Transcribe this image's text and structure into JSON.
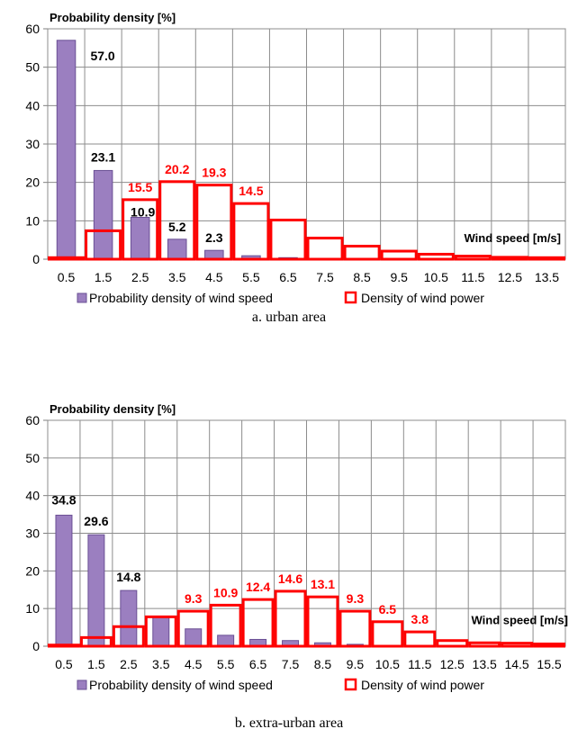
{
  "charts": [
    {
      "caption": "a. urban area",
      "chart_data": {
        "type": "bar",
        "title": "Probability density [%]",
        "xlabel": "Wind speed [m/s]",
        "ylabel": "Probability density [%]",
        "ylim": [
          0,
          60
        ],
        "yticks": [
          0,
          10,
          20,
          30,
          40,
          50,
          60
        ],
        "grid": true,
        "legend_placement": "bottom",
        "categories": [
          "0.5",
          "1.5",
          "2.5",
          "3.5",
          "4.5",
          "5.5",
          "6.5",
          "7.5",
          "8.5",
          "9.5",
          "10.5",
          "11.5",
          "12.5",
          "13.5"
        ],
        "series": [
          {
            "name": "Probability density of wind speed",
            "style": "filled-bar",
            "color": "#9b7fc0",
            "values": [
              57.0,
              23.1,
              10.9,
              5.2,
              2.3,
              0.9,
              0.4,
              0.2,
              0.1,
              0.05,
              0.02,
              0.0,
              0.0,
              0.0
            ],
            "data_labels": [
              "57.0",
              "23.1",
              "10.9",
              "5.2",
              "2.3",
              null,
              null,
              null,
              null,
              null,
              null,
              null,
              null,
              null
            ]
          },
          {
            "name": "Density of wind power",
            "style": "outline-bar",
            "color": "#ff0000",
            "values": [
              0.4,
              7.4,
              15.5,
              20.2,
              19.3,
              14.5,
              10.2,
              5.5,
              3.4,
              2.1,
              1.3,
              0.8,
              0.5,
              0.4
            ],
            "data_labels": [
              null,
              null,
              "15.5",
              "20.2",
              "19.3",
              "14.5",
              null,
              null,
              null,
              null,
              null,
              null,
              null,
              null
            ]
          }
        ]
      }
    },
    {
      "caption": "b. extra-urban area",
      "chart_data": {
        "type": "bar",
        "title": "Probability density [%]",
        "xlabel": "Wind speed [m/s]",
        "ylabel": "Probability density [%]",
        "ylim": [
          0,
          60
        ],
        "yticks": [
          0,
          10,
          20,
          30,
          40,
          50,
          60
        ],
        "grid": true,
        "legend_placement": "bottom",
        "categories": [
          "0.5",
          "1.5",
          "2.5",
          "3.5",
          "4.5",
          "5.5",
          "6.5",
          "7.5",
          "8.5",
          "9.5",
          "10.5",
          "11.5",
          "12.5",
          "13.5",
          "14.5",
          "15.5"
        ],
        "series": [
          {
            "name": "Probability density of wind speed",
            "style": "filled-bar",
            "color": "#9b7fc0",
            "values": [
              34.8,
              29.6,
              14.8,
              8.0,
              4.6,
              2.9,
              1.8,
              1.5,
              0.9,
              0.5,
              0.2,
              0.1,
              0.05,
              0.0,
              0.0,
              0.0
            ],
            "data_labels": [
              "34.8",
              "29.6",
              "14.8",
              null,
              null,
              null,
              null,
              null,
              null,
              null,
              null,
              null,
              null,
              null,
              null,
              null
            ]
          },
          {
            "name": "Density of wind power",
            "style": "outline-bar",
            "color": "#ff0000",
            "values": [
              0.3,
              2.3,
              5.2,
              7.8,
              9.3,
              10.9,
              12.4,
              14.6,
              13.1,
              9.3,
              6.5,
              3.8,
              1.5,
              0.9,
              0.8,
              0.6
            ],
            "data_labels": [
              null,
              null,
              null,
              null,
              "9.3",
              "10.9",
              "12.4",
              "14.6",
              "13.1",
              "9.3",
              "6.5",
              "3.8",
              null,
              null,
              null,
              null
            ]
          }
        ]
      }
    }
  ]
}
